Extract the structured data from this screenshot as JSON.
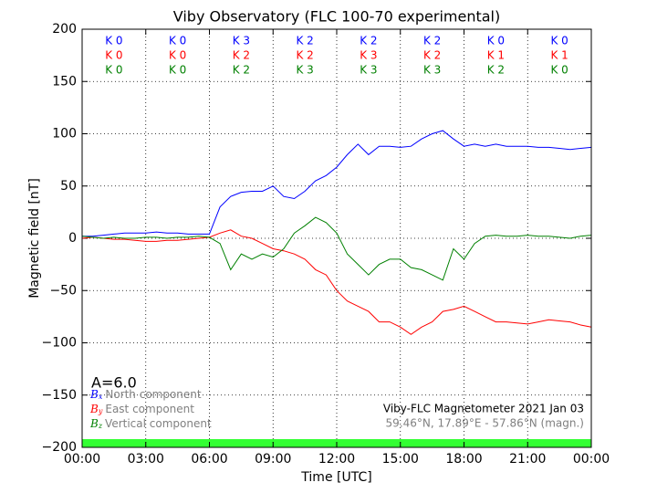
{
  "chart_data": {
    "type": "line",
    "title": "Viby Observatory (FLC 100-70 experimental)",
    "x_label": "Time [UTC]",
    "y_label": "Magnetic field [nT]",
    "x": [
      0,
      0.5,
      1,
      1.5,
      2,
      2.5,
      3,
      3.5,
      4,
      4.5,
      5,
      5.5,
      6,
      6.5,
      7,
      7.5,
      8,
      8.5,
      9,
      9.5,
      10,
      10.5,
      11,
      11.5,
      12,
      12.5,
      13,
      13.5,
      14,
      14.5,
      15,
      15.5,
      16,
      16.5,
      17,
      17.5,
      18,
      18.5,
      19,
      19.5,
      20,
      20.5,
      21,
      21.5,
      22,
      22.5,
      23,
      23.5,
      24
    ],
    "series": [
      {
        "name": "North component",
        "symbol": "B",
        "subscript": "x",
        "color": "#0000ff",
        "values": [
          2,
          2,
          3,
          4,
          5,
          5,
          5,
          6,
          5,
          5,
          4,
          4,
          4,
          30,
          40,
          44,
          45,
          45,
          50,
          40,
          38,
          45,
          55,
          60,
          68,
          80,
          90,
          80,
          88,
          88,
          87,
          88,
          95,
          100,
          103,
          95,
          88,
          90,
          88,
          90,
          88,
          88,
          88,
          87,
          87,
          86,
          85,
          86,
          87
        ]
      },
      {
        "name": "East component",
        "symbol": "B",
        "subscript": "y",
        "color": "#ff0000",
        "values": [
          0,
          1,
          0,
          -1,
          -1,
          -2,
          -3,
          -3,
          -2,
          -2,
          -1,
          0,
          1,
          5,
          8,
          2,
          0,
          -5,
          -10,
          -12,
          -15,
          -20,
          -30,
          -35,
          -50,
          -60,
          -65,
          -70,
          -80,
          -80,
          -85,
          -92,
          -85,
          -80,
          -70,
          -68,
          -65,
          -70,
          -75,
          -80,
          -80,
          -81,
          -82,
          -80,
          -78,
          -79,
          -80,
          -83,
          -85
        ]
      },
      {
        "name": "Vertical component",
        "symbol": "B",
        "subscript": "z",
        "color": "#008000",
        "values": [
          2,
          1,
          0,
          1,
          0,
          0,
          1,
          1,
          0,
          1,
          1,
          2,
          1,
          -5,
          -30,
          -15,
          -20,
          -15,
          -18,
          -10,
          5,
          12,
          20,
          15,
          5,
          -15,
          -25,
          -35,
          -25,
          -20,
          -20,
          -28,
          -30,
          -35,
          -40,
          -10,
          -20,
          -5,
          2,
          3,
          2,
          2,
          3,
          2,
          2,
          1,
          0,
          2,
          3
        ]
      }
    ],
    "k_index": [
      {
        "color": "#0000ff",
        "labels": [
          "K 0",
          "K 0",
          "K 3",
          "K 2",
          "K 2",
          "K 2",
          "K 0",
          "K 0"
        ]
      },
      {
        "color": "#ff0000",
        "labels": [
          "K 0",
          "K 0",
          "K 2",
          "K 2",
          "K 3",
          "K 2",
          "K 1",
          "K 1"
        ]
      },
      {
        "color": "#008000",
        "labels": [
          "K 0",
          "K 0",
          "K 2",
          "K 3",
          "K 3",
          "K 3",
          "K 2",
          "K 0"
        ]
      }
    ],
    "annotations": {
      "activity": "A=6.0",
      "station": "Viby-FLC Magnetometer 2021 Jan 03",
      "location": "59.46°N, 17.89°E - 57.86°N (magn.)"
    },
    "xlim": [
      0,
      24
    ],
    "xticks": [
      {
        "value": 0,
        "label": "00:00"
      },
      {
        "value": 3,
        "label": "03:00"
      },
      {
        "value": 6,
        "label": "06:00"
      },
      {
        "value": 9,
        "label": "09:00"
      },
      {
        "value": 12,
        "label": "12:00"
      },
      {
        "value": 15,
        "label": "15:00"
      },
      {
        "value": 18,
        "label": "18:00"
      },
      {
        "value": 21,
        "label": "21:00"
      },
      {
        "value": 24,
        "label": "00:00"
      }
    ],
    "ylim": [
      -200,
      200
    ],
    "yticks": [
      {
        "value": -200,
        "label": "−200"
      },
      {
        "value": -150,
        "label": "−150"
      },
      {
        "value": -100,
        "label": "−100"
      },
      {
        "value": -50,
        "label": "−50"
      },
      0,
      50,
      100,
      150,
      200
    ],
    "grid": true
  }
}
